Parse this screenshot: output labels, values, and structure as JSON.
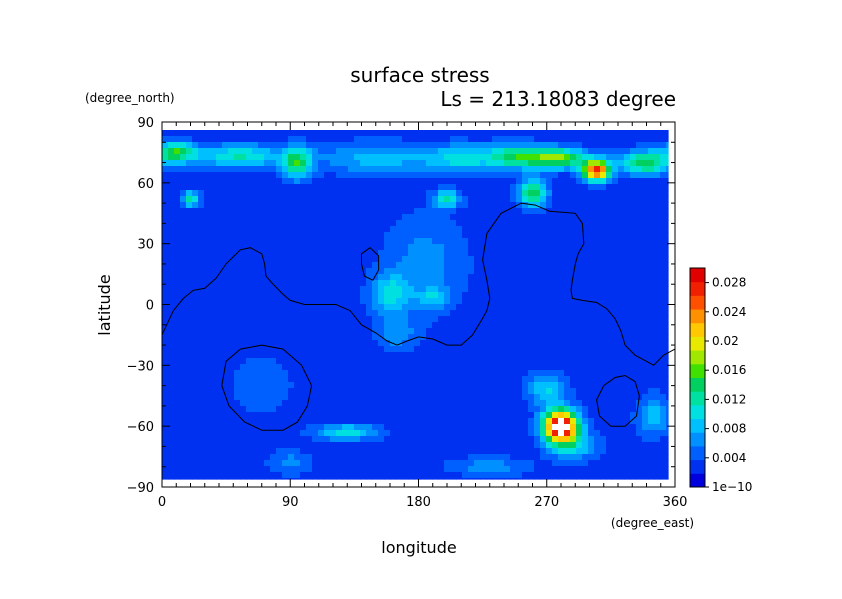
{
  "chart_data": {
    "type": "heatmap",
    "title": "surface stress",
    "subtitle": "Ls = 213.18083 degree",
    "xlabel": "longitude",
    "ylabel": "latitude",
    "x_units": "(degree_east)",
    "y_units": "(degree_north)",
    "xlim": [
      0,
      360
    ],
    "ylim": [
      -90,
      90
    ],
    "x_ticks": [
      "0",
      "90",
      "180",
      "270",
      "360"
    ],
    "y_ticks": [
      "90",
      "60",
      "30",
      "0",
      "−30",
      "−60",
      "−90"
    ],
    "colorbar": {
      "min": 0,
      "max": 0.03,
      "tick_labels": [
        "0.028",
        "0.024",
        "0.02",
        "0.016",
        "0.012",
        "0.008",
        "0.004",
        "1e−10"
      ],
      "colors": [
        "#0000dc",
        "#0030f0",
        "#0060ff",
        "#0090ff",
        "#00bfff",
        "#00e0e0",
        "#00e0a0",
        "#00d060",
        "#40e000",
        "#a0e800",
        "#e8e800",
        "#ffc800",
        "#ff9000",
        "#ff5000",
        "#f02000",
        "#e00000"
      ]
    },
    "field": {
      "background": 0.0025,
      "features": [
        {
          "lon": 10,
          "lat": 75,
          "amp": 0.012,
          "rlon": 14,
          "rlat": 5
        },
        {
          "lon": 55,
          "lat": 73,
          "amp": 0.009,
          "rlon": 30,
          "rlat": 6
        },
        {
          "lon": 95,
          "lat": 70,
          "amp": 0.011,
          "rlon": 10,
          "rlat": 8
        },
        {
          "lon": 150,
          "lat": 72,
          "amp": 0.006,
          "rlon": 40,
          "rlat": 8
        },
        {
          "lon": 210,
          "lat": 72,
          "amp": 0.007,
          "rlon": 25,
          "rlat": 7
        },
        {
          "lon": 250,
          "lat": 73,
          "amp": 0.011,
          "rlon": 22,
          "rlat": 6
        },
        {
          "lon": 280,
          "lat": 72,
          "amp": 0.013,
          "rlon": 20,
          "rlat": 5
        },
        {
          "lon": 305,
          "lat": 66,
          "amp": 0.024,
          "rlon": 10,
          "rlat": 5
        },
        {
          "lon": 340,
          "lat": 70,
          "amp": 0.012,
          "rlon": 18,
          "rlat": 6
        },
        {
          "lon": 20,
          "lat": 52,
          "amp": 0.01,
          "rlon": 6,
          "rlat": 4
        },
        {
          "lon": 200,
          "lat": 52,
          "amp": 0.01,
          "rlon": 9,
          "rlat": 4
        },
        {
          "lon": 260,
          "lat": 55,
          "amp": 0.012,
          "rlon": 10,
          "rlat": 7
        },
        {
          "lon": 185,
          "lat": 20,
          "amp": 0.004,
          "rlon": 30,
          "rlat": 25
        },
        {
          "lon": 160,
          "lat": 5,
          "amp": 0.007,
          "rlon": 14,
          "rlat": 10
        },
        {
          "lon": 190,
          "lat": 3,
          "amp": 0.005,
          "rlon": 10,
          "rlat": 5
        },
        {
          "lon": 165,
          "lat": -15,
          "amp": 0.004,
          "rlon": 15,
          "rlat": 8
        },
        {
          "lon": 70,
          "lat": -40,
          "amp": 0.002,
          "rlon": 30,
          "rlat": 20
        },
        {
          "lon": 130,
          "lat": -63,
          "amp": 0.008,
          "rlon": 22,
          "rlat": 4
        },
        {
          "lon": 270,
          "lat": -42,
          "amp": 0.007,
          "rlon": 14,
          "rlat": 8
        },
        {
          "lon": 280,
          "lat": -60,
          "amp": 0.031,
          "rlon": 12,
          "rlat": 8
        },
        {
          "lon": 290,
          "lat": -70,
          "amp": 0.006,
          "rlon": 18,
          "rlat": 7
        },
        {
          "lon": 345,
          "lat": -55,
          "amp": 0.006,
          "rlon": 12,
          "rlat": 10
        },
        {
          "lon": 90,
          "lat": -78,
          "amp": 0.004,
          "rlon": 15,
          "rlat": 6
        },
        {
          "lon": 230,
          "lat": -80,
          "amp": 0.004,
          "rlon": 30,
          "rlat": 5
        }
      ]
    },
    "contours": [
      {
        "name": "dichotomy-boundary",
        "points": [
          [
            0,
            -15
          ],
          [
            8,
            -3
          ],
          [
            15,
            3
          ],
          [
            22,
            7
          ],
          [
            30,
            8
          ],
          [
            38,
            13
          ],
          [
            45,
            20
          ],
          [
            55,
            27
          ],
          [
            62,
            28
          ],
          [
            70,
            25
          ],
          [
            72,
            20
          ],
          [
            73,
            14
          ],
          [
            78,
            10
          ],
          [
            85,
            5
          ],
          [
            90,
            2
          ],
          [
            100,
            0
          ],
          [
            110,
            0
          ],
          [
            122,
            0
          ],
          [
            132,
            -3
          ],
          [
            140,
            -10
          ],
          [
            150,
            -14
          ],
          [
            158,
            -18
          ],
          [
            165,
            -20
          ],
          [
            172,
            -18
          ],
          [
            180,
            -16
          ],
          [
            190,
            -17
          ],
          [
            200,
            -20
          ],
          [
            210,
            -20
          ],
          [
            218,
            -15
          ],
          [
            224,
            -8
          ],
          [
            228,
            -3
          ],
          [
            230,
            3
          ],
          [
            228,
            12
          ],
          [
            225,
            22
          ],
          [
            228,
            35
          ],
          [
            238,
            45
          ],
          [
            252,
            50
          ],
          [
            262,
            49
          ],
          [
            272,
            46
          ],
          [
            290,
            45
          ],
          [
            295,
            40
          ],
          [
            296,
            30
          ],
          [
            292,
            25
          ],
          [
            290,
            20
          ],
          [
            288,
            12
          ],
          [
            287,
            7
          ],
          [
            288,
            3
          ],
          [
            295,
            2
          ],
          [
            305,
            1
          ],
          [
            312,
            -2
          ],
          [
            318,
            -7
          ],
          [
            322,
            -13
          ],
          [
            325,
            -20
          ],
          [
            332,
            -25
          ],
          [
            340,
            -28
          ],
          [
            345,
            -30
          ],
          [
            352,
            -25
          ],
          [
            360,
            -22
          ]
        ]
      },
      {
        "name": "small-basin",
        "points": [
          [
            140,
            25
          ],
          [
            146,
            28
          ],
          [
            152,
            24
          ],
          [
            152,
            17
          ],
          [
            148,
            12
          ],
          [
            142,
            14
          ],
          [
            140,
            20
          ],
          [
            140,
            25
          ]
        ]
      },
      {
        "name": "large-basin",
        "points": [
          [
            70,
            -20
          ],
          [
            85,
            -22
          ],
          [
            98,
            -30
          ],
          [
            105,
            -40
          ],
          [
            102,
            -50
          ],
          [
            95,
            -58
          ],
          [
            85,
            -62
          ],
          [
            70,
            -62
          ],
          [
            58,
            -58
          ],
          [
            47,
            -50
          ],
          [
            42,
            -40
          ],
          [
            45,
            -28
          ],
          [
            55,
            -22
          ],
          [
            70,
            -20
          ]
        ]
      },
      {
        "name": "small-south-basin",
        "points": [
          [
            325,
            -35
          ],
          [
            332,
            -38
          ],
          [
            335,
            -45
          ],
          [
            333,
            -55
          ],
          [
            325,
            -60
          ],
          [
            315,
            -60
          ],
          [
            307,
            -55
          ],
          [
            305,
            -47
          ],
          [
            310,
            -40
          ],
          [
            318,
            -36
          ],
          [
            325,
            -35
          ]
        ]
      }
    ]
  }
}
